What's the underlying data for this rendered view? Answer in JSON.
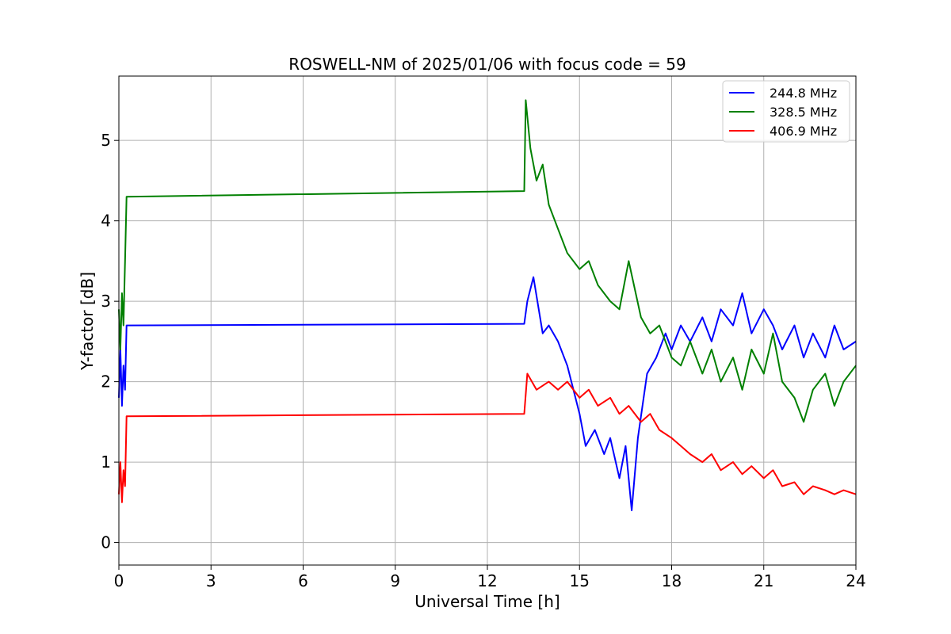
{
  "chart_data": {
    "type": "line",
    "title": "ROSWELL-NM of 2025/01/06 with focus code = 59",
    "xlabel": "Universal Time [h]",
    "ylabel": "Y-factor [dB]",
    "xlim": [
      0,
      24
    ],
    "ylim": [
      -0.28,
      5.8
    ],
    "xticks": [
      0,
      3,
      6,
      9,
      12,
      15,
      18,
      21,
      24
    ],
    "yticks": [
      0,
      1,
      2,
      3,
      4,
      5
    ],
    "grid": true,
    "legend_position": "top-right",
    "series": [
      {
        "name": "244.8 MHz",
        "color": "#0000ff",
        "points": [
          [
            0.0,
            1.8
          ],
          [
            0.05,
            2.4
          ],
          [
            0.1,
            1.7
          ],
          [
            0.15,
            2.2
          ],
          [
            0.2,
            1.9
          ],
          [
            0.25,
            2.7
          ],
          [
            13.2,
            2.72
          ],
          [
            13.3,
            3.0
          ],
          [
            13.5,
            3.3
          ],
          [
            13.8,
            2.6
          ],
          [
            14.0,
            2.7
          ],
          [
            14.3,
            2.5
          ],
          [
            14.6,
            2.2
          ],
          [
            15.0,
            1.6
          ],
          [
            15.2,
            1.2
          ],
          [
            15.5,
            1.4
          ],
          [
            15.8,
            1.1
          ],
          [
            16.0,
            1.3
          ],
          [
            16.3,
            0.8
          ],
          [
            16.5,
            1.2
          ],
          [
            16.7,
            0.4
          ],
          [
            16.9,
            1.3
          ],
          [
            17.2,
            2.1
          ],
          [
            17.5,
            2.3
          ],
          [
            17.8,
            2.6
          ],
          [
            18.0,
            2.4
          ],
          [
            18.3,
            2.7
          ],
          [
            18.6,
            2.5
          ],
          [
            19.0,
            2.8
          ],
          [
            19.3,
            2.5
          ],
          [
            19.6,
            2.9
          ],
          [
            20.0,
            2.7
          ],
          [
            20.3,
            3.1
          ],
          [
            20.6,
            2.6
          ],
          [
            21.0,
            2.9
          ],
          [
            21.3,
            2.7
          ],
          [
            21.6,
            2.4
          ],
          [
            22.0,
            2.7
          ],
          [
            22.3,
            2.3
          ],
          [
            22.6,
            2.6
          ],
          [
            23.0,
            2.3
          ],
          [
            23.3,
            2.7
          ],
          [
            23.6,
            2.4
          ],
          [
            24.0,
            2.5
          ]
        ]
      },
      {
        "name": "328.5 MHz",
        "color": "#008000",
        "points": [
          [
            0.0,
            2.9
          ],
          [
            0.05,
            2.4
          ],
          [
            0.1,
            3.1
          ],
          [
            0.15,
            2.7
          ],
          [
            0.2,
            3.5
          ],
          [
            0.25,
            4.3
          ],
          [
            13.2,
            4.37
          ],
          [
            13.25,
            5.5
          ],
          [
            13.4,
            4.9
          ],
          [
            13.6,
            4.5
          ],
          [
            13.8,
            4.7
          ],
          [
            14.0,
            4.2
          ],
          [
            14.3,
            3.9
          ],
          [
            14.6,
            3.6
          ],
          [
            15.0,
            3.4
          ],
          [
            15.3,
            3.5
          ],
          [
            15.6,
            3.2
          ],
          [
            16.0,
            3.0
          ],
          [
            16.3,
            2.9
          ],
          [
            16.6,
            3.5
          ],
          [
            17.0,
            2.8
          ],
          [
            17.3,
            2.6
          ],
          [
            17.6,
            2.7
          ],
          [
            18.0,
            2.3
          ],
          [
            18.3,
            2.2
          ],
          [
            18.6,
            2.5
          ],
          [
            19.0,
            2.1
          ],
          [
            19.3,
            2.4
          ],
          [
            19.6,
            2.0
          ],
          [
            20.0,
            2.3
          ],
          [
            20.3,
            1.9
          ],
          [
            20.6,
            2.4
          ],
          [
            21.0,
            2.1
          ],
          [
            21.3,
            2.6
          ],
          [
            21.6,
            2.0
          ],
          [
            22.0,
            1.8
          ],
          [
            22.3,
            1.5
          ],
          [
            22.6,
            1.9
          ],
          [
            23.0,
            2.1
          ],
          [
            23.3,
            1.7
          ],
          [
            23.6,
            2.0
          ],
          [
            24.0,
            2.2
          ]
        ]
      },
      {
        "name": "406.9 MHz",
        "color": "#ff0000",
        "points": [
          [
            0.0,
            0.6
          ],
          [
            0.05,
            1.0
          ],
          [
            0.1,
            0.5
          ],
          [
            0.15,
            0.9
          ],
          [
            0.2,
            0.7
          ],
          [
            0.25,
            1.57
          ],
          [
            13.2,
            1.6
          ],
          [
            13.3,
            2.1
          ],
          [
            13.6,
            1.9
          ],
          [
            14.0,
            2.0
          ],
          [
            14.3,
            1.9
          ],
          [
            14.6,
            2.0
          ],
          [
            15.0,
            1.8
          ],
          [
            15.3,
            1.9
          ],
          [
            15.6,
            1.7
          ],
          [
            16.0,
            1.8
          ],
          [
            16.3,
            1.6
          ],
          [
            16.6,
            1.7
          ],
          [
            17.0,
            1.5
          ],
          [
            17.3,
            1.6
          ],
          [
            17.6,
            1.4
          ],
          [
            18.0,
            1.3
          ],
          [
            18.3,
            1.2
          ],
          [
            18.6,
            1.1
          ],
          [
            19.0,
            1.0
          ],
          [
            19.3,
            1.1
          ],
          [
            19.6,
            0.9
          ],
          [
            20.0,
            1.0
          ],
          [
            20.3,
            0.85
          ],
          [
            20.6,
            0.95
          ],
          [
            21.0,
            0.8
          ],
          [
            21.3,
            0.9
          ],
          [
            21.6,
            0.7
          ],
          [
            22.0,
            0.75
          ],
          [
            22.3,
            0.6
          ],
          [
            22.6,
            0.7
          ],
          [
            23.0,
            0.65
          ],
          [
            23.3,
            0.6
          ],
          [
            23.6,
            0.65
          ],
          [
            24.0,
            0.6
          ]
        ]
      }
    ]
  }
}
